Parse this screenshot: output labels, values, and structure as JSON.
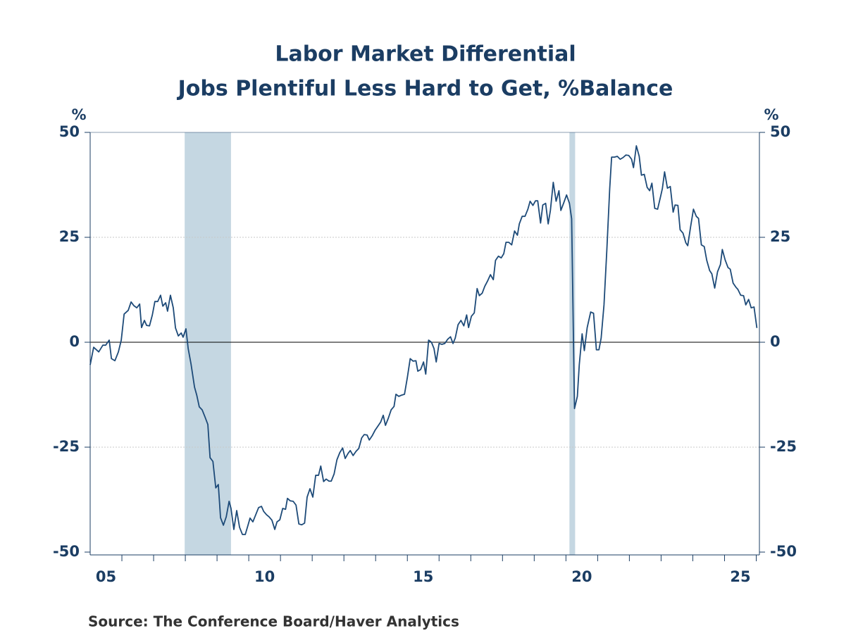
{
  "chart_data": {
    "type": "line",
    "title": [
      "Labor Market Differential",
      "Jobs Plentiful Less Hard to Get, %Balance"
    ],
    "ylabel": "%",
    "y2label": "%",
    "source": "Source:  The Conference Board/Haver Analytics",
    "color": "#1d4a78",
    "shade_color": "#c5d7e2",
    "recessions": [
      [
        2007.98,
        2009.44
      ],
      [
        2020.11,
        2020.29
      ]
    ],
    "xlim": [
      2005,
      2026.1
    ],
    "xticks": [
      {
        "value": 2005.5,
        "label": "05"
      },
      {
        "value": 2010.5,
        "label": "10"
      },
      {
        "value": 2015.5,
        "label": "15"
      },
      {
        "value": 2020.5,
        "label": "20"
      },
      {
        "value": 2025.5,
        "label": "25"
      }
    ],
    "xtick_marks": [
      2006,
      2007,
      2008,
      2009,
      2010,
      2011,
      2012,
      2013,
      2014,
      2015,
      2016,
      2017,
      2018,
      2019,
      2020,
      2021,
      2022,
      2023,
      2024,
      2025,
      2026
    ],
    "ylim": [
      -50,
      50
    ],
    "yticks": [
      -50,
      -25,
      0,
      25,
      50
    ],
    "y2lim": [
      -50,
      50
    ],
    "y2ticks": [
      -50,
      -25,
      0,
      25,
      50
    ],
    "grid": true,
    "x": [
      2005.0,
      2005.11,
      2005.27,
      2005.4,
      2005.49,
      2005.6,
      2005.67,
      2005.78,
      2005.89,
      2005.98,
      2006.07,
      2006.2,
      2006.29,
      2006.38,
      2006.47,
      2006.56,
      2006.62,
      2006.71,
      2006.78,
      2006.87,
      2006.96,
      2007.04,
      2007.13,
      2007.22,
      2007.29,
      2007.38,
      2007.44,
      2007.53,
      2007.62,
      2007.69,
      2007.78,
      2007.87,
      2007.93,
      2008.02,
      2008.09,
      2008.18,
      2008.29,
      2008.36,
      2008.44,
      2008.53,
      2008.62,
      2008.71,
      2008.78,
      2008.87,
      2008.96,
      2009.04,
      2009.11,
      2009.2,
      2009.29,
      2009.38,
      2009.44,
      2009.53,
      2009.62,
      2009.71,
      2009.8,
      2009.89,
      2009.98,
      2010.04,
      2010.13,
      2010.22,
      2010.31,
      2010.4,
      2010.47,
      2010.56,
      2010.64,
      2010.73,
      2010.82,
      2010.89,
      2010.98,
      2011.07,
      2011.16,
      2011.22,
      2011.31,
      2011.4,
      2011.49,
      2011.58,
      2011.67,
      2011.76,
      2011.84,
      2011.93,
      2012.02,
      2012.11,
      2012.2,
      2012.27,
      2012.36,
      2012.44,
      2012.53,
      2012.6,
      2012.69,
      2012.78,
      2012.87,
      2012.96,
      2013.04,
      2013.13,
      2013.2,
      2013.29,
      2013.38,
      2013.47,
      2013.56,
      2013.64,
      2013.73,
      2013.8,
      2013.89,
      2013.98,
      2014.07,
      2014.16,
      2014.24,
      2014.31,
      2014.4,
      2014.49,
      2014.58,
      2014.64,
      2014.73,
      2014.82,
      2014.91,
      2015.0,
      2015.09,
      2015.18,
      2015.27,
      2015.33,
      2015.42,
      2015.51,
      2015.58,
      2015.67,
      2015.76,
      2015.84,
      2015.91,
      2016.0,
      2016.09,
      2016.18,
      2016.27,
      2016.36,
      2016.44,
      2016.51,
      2016.6,
      2016.69,
      2016.78,
      2016.87,
      2016.93,
      2017.02,
      2017.11,
      2017.2,
      2017.27,
      2017.36,
      2017.44,
      2017.53,
      2017.62,
      2017.71,
      2017.78,
      2017.87,
      2017.96,
      2018.04,
      2018.11,
      2018.2,
      2018.29,
      2018.38,
      2018.47,
      2018.53,
      2018.62,
      2018.71,
      2018.8,
      2018.87,
      2018.96,
      2019.04,
      2019.11,
      2019.2,
      2019.27,
      2019.36,
      2019.44,
      2019.51,
      2019.6,
      2019.69,
      2019.78,
      2019.84,
      2019.93,
      2020.02,
      2020.11,
      2020.18,
      2020.27,
      2020.36,
      2020.42,
      2020.51,
      2020.58,
      2020.67,
      2020.78,
      2020.87,
      2020.96,
      2021.04,
      2021.11,
      2021.2,
      2021.29,
      2021.38,
      2021.44,
      2021.53,
      2021.62,
      2021.71,
      2021.8,
      2021.89,
      2021.98,
      2022.07,
      2022.13,
      2022.22,
      2022.31,
      2022.38,
      2022.47,
      2022.56,
      2022.64,
      2022.71,
      2022.8,
      2022.89,
      2022.98,
      2023.04,
      2023.11,
      2023.2,
      2023.29,
      2023.38,
      2023.44,
      2023.53,
      2023.6,
      2023.69,
      2023.78,
      2023.84,
      2023.93,
      2024.02,
      2024.11,
      2024.18,
      2024.27,
      2024.36,
      2024.44,
      2024.53,
      2024.6,
      2024.69,
      2024.78,
      2024.87,
      2024.93,
      2025.02,
      2025.11,
      2025.18,
      2025.27,
      2025.36,
      2025.42,
      2025.51,
      2025.6,
      2025.67,
      2025.76,
      2025.84,
      2025.93,
      2026.02
    ],
    "values": [
      -5.4,
      -1.2,
      -2.3,
      -0.7,
      -0.7,
      0.5,
      -3.9,
      -4.4,
      -2.3,
      0.5,
      6.7,
      7.6,
      9.6,
      8.7,
      8.2,
      9.1,
      3.5,
      5.2,
      4.0,
      3.9,
      6.5,
      9.7,
      9.7,
      11.2,
      8.6,
      9.4,
      7.4,
      11.2,
      8.2,
      3.4,
      1.5,
      2.2,
      1.2,
      3.2,
      -1.5,
      -5.2,
      -10.7,
      -12.6,
      -15.4,
      -16.1,
      -17.8,
      -19.6,
      -27.5,
      -28.4,
      -34.7,
      -33.9,
      -41.8,
      -43.6,
      -41.6,
      -37.9,
      -39.6,
      -44.6,
      -40.1,
      -44.1,
      -45.8,
      -45.8,
      -43.5,
      -41.9,
      -42.8,
      -41.1,
      -39.4,
      -39.1,
      -40.3,
      -41.1,
      -41.6,
      -42.4,
      -44.6,
      -42.8,
      -42.3,
      -39.6,
      -39.8,
      -37.2,
      -37.8,
      -37.9,
      -38.8,
      -43.3,
      -43.5,
      -43.1,
      -36.9,
      -34.9,
      -36.9,
      -31.7,
      -31.7,
      -29.5,
      -33.2,
      -32.6,
      -33.1,
      -33.1,
      -31.4,
      -28.0,
      -26.3,
      -25.2,
      -27.7,
      -26.5,
      -25.8,
      -27.0,
      -26.0,
      -25.3,
      -22.8,
      -22.0,
      -22.1,
      -23.3,
      -22.3,
      -21.0,
      -20.0,
      -19.0,
      -17.4,
      -19.8,
      -18.1,
      -16.1,
      -15.3,
      -12.4,
      -12.9,
      -12.6,
      -12.4,
      -8.4,
      -3.9,
      -4.5,
      -4.4,
      -6.9,
      -6.5,
      -4.7,
      -7.6,
      0.5,
      0.0,
      -1.5,
      -4.7,
      -0.3,
      -0.5,
      -0.3,
      0.7,
      1.3,
      -0.3,
      1.0,
      4.2,
      5.2,
      3.9,
      6.5,
      3.5,
      6.2,
      7.0,
      12.8,
      11.1,
      11.7,
      13.3,
      14.6,
      16.1,
      14.9,
      19.5,
      20.5,
      20.1,
      21.1,
      23.8,
      23.8,
      23.2,
      26.5,
      25.5,
      28.2,
      30.0,
      30.0,
      31.7,
      33.6,
      32.6,
      33.7,
      33.7,
      28.4,
      32.7,
      33.1,
      28.2,
      31.4,
      38.1,
      33.6,
      36.1,
      31.4,
      33.2,
      35.1,
      33.1,
      29.4,
      -15.8,
      -12.9,
      -5.4,
      2.0,
      -2.0,
      3.5,
      7.2,
      6.9,
      -1.8,
      -1.8,
      1.0,
      8.9,
      22.1,
      36.6,
      44.1,
      44.1,
      44.3,
      43.6,
      44.0,
      44.6,
      44.5,
      43.6,
      41.6,
      46.8,
      44.3,
      39.8,
      40.0,
      36.9,
      36.1,
      37.9,
      31.9,
      31.7,
      34.6,
      36.6,
      40.6,
      36.7,
      37.1,
      31.0,
      32.7,
      32.6,
      26.8,
      26.0,
      23.7,
      23.0,
      27.5,
      31.7,
      30.0,
      29.5,
      23.2,
      22.8,
      19.5,
      17.1,
      16.3,
      12.9,
      16.8,
      18.5,
      22.1,
      19.6,
      17.8,
      17.4,
      14.1,
      13.1,
      12.6,
      11.2,
      11.1,
      8.9,
      10.2,
      8.2,
      8.4,
      3.4
    ]
  }
}
